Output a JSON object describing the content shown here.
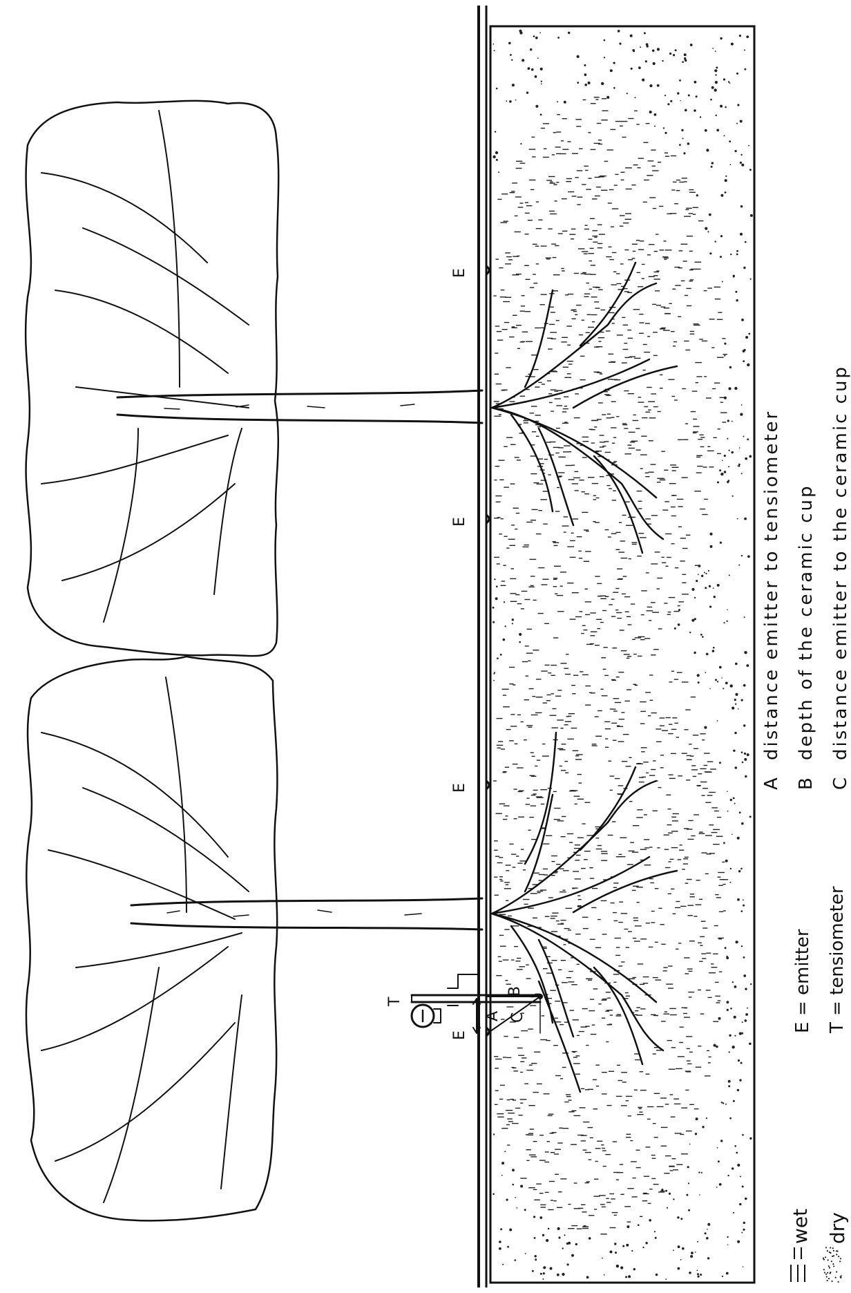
{
  "diagram": {
    "labels": {
      "emitter_marker": "E",
      "tensiometer_marker": "T",
      "dim_a": "A",
      "dim_b": "B",
      "dim_c": "C"
    },
    "legend_left": {
      "wet": "wet",
      "dry": "dry"
    },
    "legend_right": [
      {
        "key": "E",
        "sep": "=",
        "text": "emitter"
      },
      {
        "key": "T",
        "sep": "=",
        "text": "tensiometer"
      }
    ],
    "legend_letters": [
      {
        "key": "A",
        "text": "distance emitter to tensiometer"
      },
      {
        "key": "B",
        "text": "depth of the ceramic cup"
      },
      {
        "key": "C",
        "text": "distance emitter to the ceramic cup"
      }
    ]
  }
}
